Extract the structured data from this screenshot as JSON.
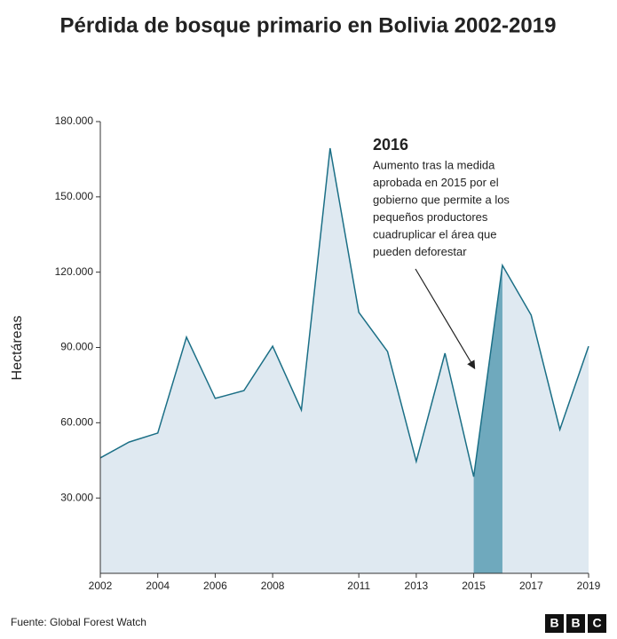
{
  "chart_data": {
    "type": "area",
    "title": "Pérdida de bosque primario en Bolivia 2002-2019",
    "y_label": "Hectáreas",
    "x": [
      2002,
      2003,
      2004,
      2005,
      2006,
      2007,
      2008,
      2009,
      2010,
      2011,
      2012,
      2013,
      2014,
      2015,
      2016,
      2017,
      2018,
      2019
    ],
    "values": [
      46000,
      52300,
      55900,
      94100,
      69700,
      72800,
      90500,
      65100,
      169400,
      104000,
      88400,
      44600,
      87700,
      38500,
      122700,
      102900,
      57300,
      90500
    ],
    "color": "#1b6f86",
    "fill": "#dfe9f1",
    "highlight": [
      2015,
      2016
    ],
    "highlight_color": "#6fa9bd",
    "xlim": [
      2002,
      2019
    ],
    "xticks": [
      2002,
      2004,
      2006,
      2008,
      2011,
      2013,
      2015,
      2017,
      2019
    ],
    "ylim": [
      0,
      180000
    ],
    "yticks": [
      {
        "value": 30000,
        "label": "30.000"
      },
      {
        "value": 60000,
        "label": "60.000"
      },
      {
        "value": 90000,
        "label": "90.000"
      },
      {
        "value": 120000,
        "label": "120.000"
      },
      {
        "value": 150000,
        "label": "150.000"
      },
      {
        "value": 180000,
        "label": "180.000"
      }
    ],
    "annotation": {
      "title": "2016",
      "lines": [
        "Aumento tras la medida",
        "aprobada en 2015 por el",
        "gobierno que permite a los",
        "pequeños productores",
        "cuadruplicar el área que",
        "pueden deforestar"
      ]
    },
    "source": "Fuente: Global Forest Watch",
    "logo": [
      "B",
      "B",
      "C"
    ]
  }
}
